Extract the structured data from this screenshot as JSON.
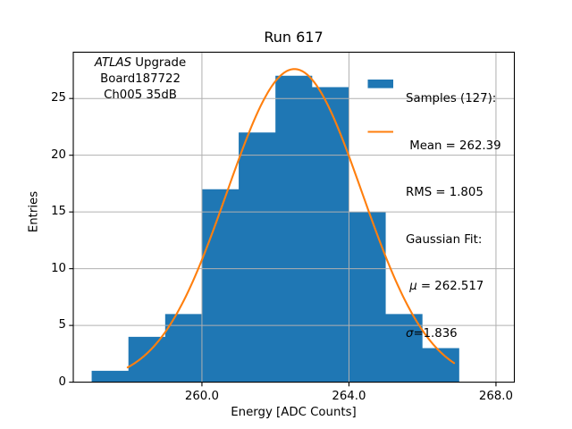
{
  "chart_data": {
    "type": "histogram",
    "title": "Run 617",
    "xlabel": "Energy [ADC Counts]",
    "ylabel": "Entries",
    "bin_edges": [
      257,
      258,
      259,
      260,
      261,
      262,
      263,
      264,
      265,
      266,
      267
    ],
    "counts": [
      1,
      4,
      6,
      17,
      22,
      27,
      26,
      15,
      6,
      3
    ],
    "total_samples": 127,
    "hist_color": "#1f77b4",
    "stats": {
      "mean": 262.39,
      "rms": 1.805
    },
    "gaussian_fit": {
      "mu": 262.517,
      "sigma": 1.836,
      "color": "#ff7f0e",
      "x_start": 257.98,
      "x_end": 266.86
    },
    "xlim": [
      256.5,
      268.5
    ],
    "ylim": [
      0,
      29.08
    ],
    "xticks": {
      "values": [
        260.0,
        264.0,
        268.0
      ],
      "labels": [
        "260.0",
        "264.0",
        "268.0"
      ]
    },
    "yticks": {
      "values": [
        0,
        5,
        10,
        15,
        20,
        25
      ],
      "labels": [
        "0",
        "5",
        "10",
        "15",
        "20",
        "25"
      ]
    },
    "grid": true,
    "grid_color": "#b0b0b0",
    "axis_color": "#000000",
    "background": "#ffffff",
    "legend_position": "upper right"
  },
  "annotation": {
    "line1_italic": "ATLAS",
    "line1_rest": " Upgrade",
    "line2": "Board187722",
    "line3": "Ch005 35dB"
  },
  "legend": {
    "samples": {
      "color": "#1f77b4",
      "line1": "Samples (127):",
      "line2": " Mean = 262.39",
      "line3": "RMS = 1.805"
    },
    "fit": {
      "color": "#ff7f0e",
      "line1": "Gaussian Fit:",
      "mu_symbol": " μ",
      "mu_rest": " = 262.517",
      "sigma_symbol": "σ",
      "sigma_rest": "=1.836"
    }
  }
}
